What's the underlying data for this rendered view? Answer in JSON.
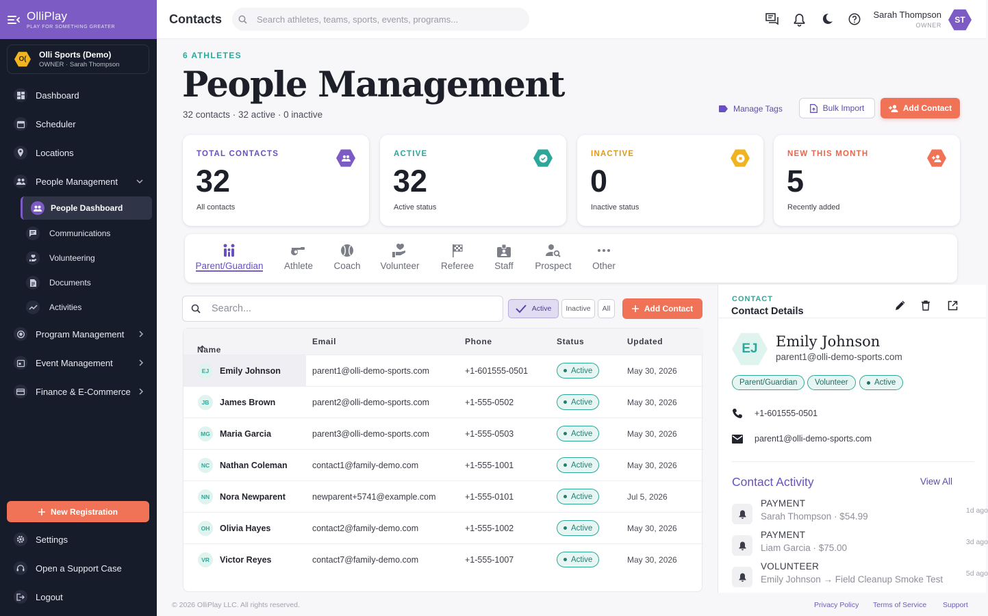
{
  "brand": {
    "name": "OlliPlay",
    "tagline": "PLAY FOR SOMETHING GREATER"
  },
  "org": {
    "badge": "O(",
    "name": "Olli Sports (Demo)",
    "sub": "OWNER · Sarah Thompson"
  },
  "sidebar": {
    "main": [
      {
        "label": "Dashboard",
        "icon": "dashboard-icon"
      },
      {
        "label": "Scheduler",
        "icon": "calendar-icon"
      },
      {
        "label": "Locations",
        "icon": "location-pin-icon"
      },
      {
        "label": "People Management",
        "icon": "people-icon"
      }
    ],
    "sub_active": "People Dashboard",
    "sub": [
      "Communications",
      "Volunteering",
      "Documents",
      "Activities"
    ],
    "more": [
      "Program Management",
      "Event Management",
      "Finance & E-Commerce"
    ],
    "new_registration": "New Registration",
    "bottom": [
      "Settings",
      "Open a Support Case",
      "Logout"
    ]
  },
  "header": {
    "title": "Contacts",
    "search_placeholder": "Search athletes, teams, sports, events, programs...",
    "user_name": "Sarah Thompson",
    "user_role": "OWNER",
    "user_initials": "ST"
  },
  "page": {
    "eyebrow": "6 ATHLETES",
    "title": "People Management",
    "summary": "32 contacts · 32 active · 0 inactive",
    "manage_tags": "Manage Tags",
    "bulk_import": "Bulk Import",
    "add_contact": "Add Contact"
  },
  "stats": [
    {
      "label": "TOTAL CONTACTS",
      "value": "32",
      "caption": "All contacts",
      "color": "#7c5cc4"
    },
    {
      "label": "ACTIVE",
      "value": "32",
      "caption": "Active status",
      "color": "#2ba89a"
    },
    {
      "label": "INACTIVE",
      "value": "0",
      "caption": "Inactive status",
      "color": "#f0a81e"
    },
    {
      "label": "NEW THIS MONTH",
      "value": "5",
      "caption": "Recently added",
      "color": "#f07357"
    }
  ],
  "tabs": [
    "Parent/Guardian",
    "Athlete",
    "Coach",
    "Volunteer",
    "Referee",
    "Staff",
    "Prospect",
    "Other"
  ],
  "list": {
    "search_placeholder": "Search...",
    "filters": [
      "Active",
      "Inactive",
      "All"
    ],
    "add_contact": "Add Contact",
    "columns": {
      "name": "Name",
      "email": "Email",
      "phone": "Phone",
      "status": "Status",
      "updated": "Updated"
    },
    "rows": [
      {
        "initials": "EJ",
        "name": "Emily Johnson",
        "email": "parent1@olli-demo-sports.com",
        "phone": "+1-601555-0501",
        "status": "Active",
        "updated": "May 30, 2026"
      },
      {
        "initials": "JB",
        "name": "James Brown",
        "email": "parent2@olli-demo-sports.com",
        "phone": "+1-555-0502",
        "status": "Active",
        "updated": "May 30, 2026"
      },
      {
        "initials": "MG",
        "name": "Maria Garcia",
        "email": "parent3@olli-demo-sports.com",
        "phone": "+1-555-0503",
        "status": "Active",
        "updated": "May 30, 2026"
      },
      {
        "initials": "NC",
        "name": "Nathan Coleman",
        "email": "contact1@family-demo.com",
        "phone": "+1-555-1001",
        "status": "Active",
        "updated": "May 30, 2026"
      },
      {
        "initials": "NN",
        "name": "Nora Newparent",
        "email": "newparent+5741@example.com",
        "phone": "+1-555-0101",
        "status": "Active",
        "updated": "Jul 5, 2026"
      },
      {
        "initials": "OH",
        "name": "Olivia Hayes",
        "email": "contact2@family-demo.com",
        "phone": "+1-555-1002",
        "status": "Active",
        "updated": "May 30, 2026"
      },
      {
        "initials": "VR",
        "name": "Victor Reyes",
        "email": "contact7@family-demo.com",
        "phone": "+1-555-1007",
        "status": "Active",
        "updated": "May 30, 2026"
      }
    ]
  },
  "detail": {
    "eyebrow": "CONTACT",
    "title": "Contact Details",
    "initials": "EJ",
    "name": "Emily Johnson",
    "email": "parent1@olli-demo-sports.com",
    "chips": [
      "Parent/Guardian",
      "Volunteer",
      "Active"
    ],
    "phone": "+1-601555-0501",
    "email_row": "parent1@olli-demo-sports.com",
    "activity_title": "Contact Activity",
    "view_all": "View All",
    "activity": [
      {
        "type": "PAYMENT",
        "desc": "Sarah Thompson · $54.99",
        "ago": "1d ago"
      },
      {
        "type": "PAYMENT",
        "desc": "Liam Garcia · $75.00",
        "ago": "3d ago"
      },
      {
        "type": "VOLUNTEER",
        "desc": "Emily Johnson → Field Cleanup Smoke Test",
        "ago": "5d ago"
      }
    ]
  },
  "footer": {
    "copyright": "© 2026 OlliPlay LLC. All rights reserved.",
    "links": [
      "Privacy Policy",
      "Terms of Service",
      "Support"
    ]
  }
}
